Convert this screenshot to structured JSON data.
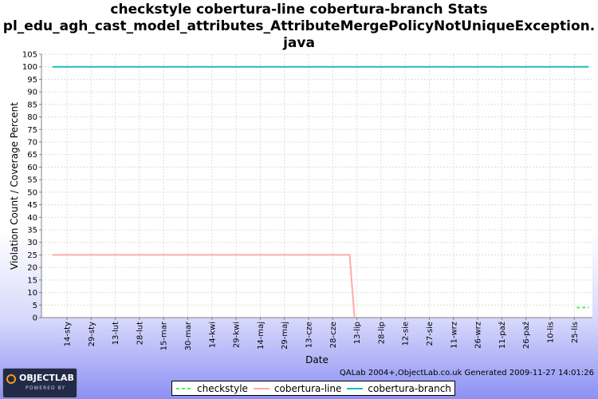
{
  "title_lines": [
    "checkstyle cobertura-line cobertura-branch  Stats",
    "pl_edu_agh_cast_model_attributes_AttributeMergePolicyNotUniqueException.",
    "java"
  ],
  "footer_credit": "QALab 2004+,ObjectLab.co.uk Generated 2009-11-27 14:01:26",
  "logo": {
    "name": "OBJECTLAB",
    "tagline": "POWERED BY"
  },
  "colors": {
    "checkstyle": "#55ee55",
    "cobertura-line": "#ffaaaa",
    "cobertura-branch": "#22bbbb",
    "grid": "#dcdcdc",
    "background": "#ffffff"
  },
  "chart_data": {
    "type": "line",
    "xlabel": "Date",
    "ylabel": "Violation Count / Coverage Percent",
    "ylim": [
      0,
      105
    ],
    "yticks": [
      0,
      5,
      10,
      15,
      20,
      25,
      30,
      35,
      40,
      45,
      50,
      55,
      60,
      65,
      70,
      75,
      80,
      85,
      90,
      95,
      100,
      105
    ],
    "categories": [
      "14-sty",
      "29-sty",
      "13-lut",
      "28-lut",
      "15-mar",
      "30-mar",
      "14-kwi",
      "29-kwi",
      "14-maj",
      "29-maj",
      "13-cze",
      "28-cze",
      "13-lip",
      "28-lip",
      "12-sie",
      "27-sie",
      "11-wrz",
      "26-wrz",
      "11-paź",
      "26-paź",
      "10-lis",
      "25-lis"
    ],
    "grid": true,
    "legend_position": "bottom",
    "series": [
      {
        "name": "checkstyle",
        "style": "dashed",
        "points": [
          [
            21.1,
            4
          ],
          [
            21.6,
            4
          ]
        ]
      },
      {
        "name": "cobertura-line",
        "style": "solid",
        "points": [
          [
            -0.6,
            25
          ],
          [
            11.7,
            25
          ],
          [
            11.9,
            0
          ]
        ]
      },
      {
        "name": "cobertura-branch",
        "style": "solid",
        "points": [
          [
            -0.6,
            100
          ],
          [
            21.6,
            100
          ]
        ]
      }
    ]
  }
}
